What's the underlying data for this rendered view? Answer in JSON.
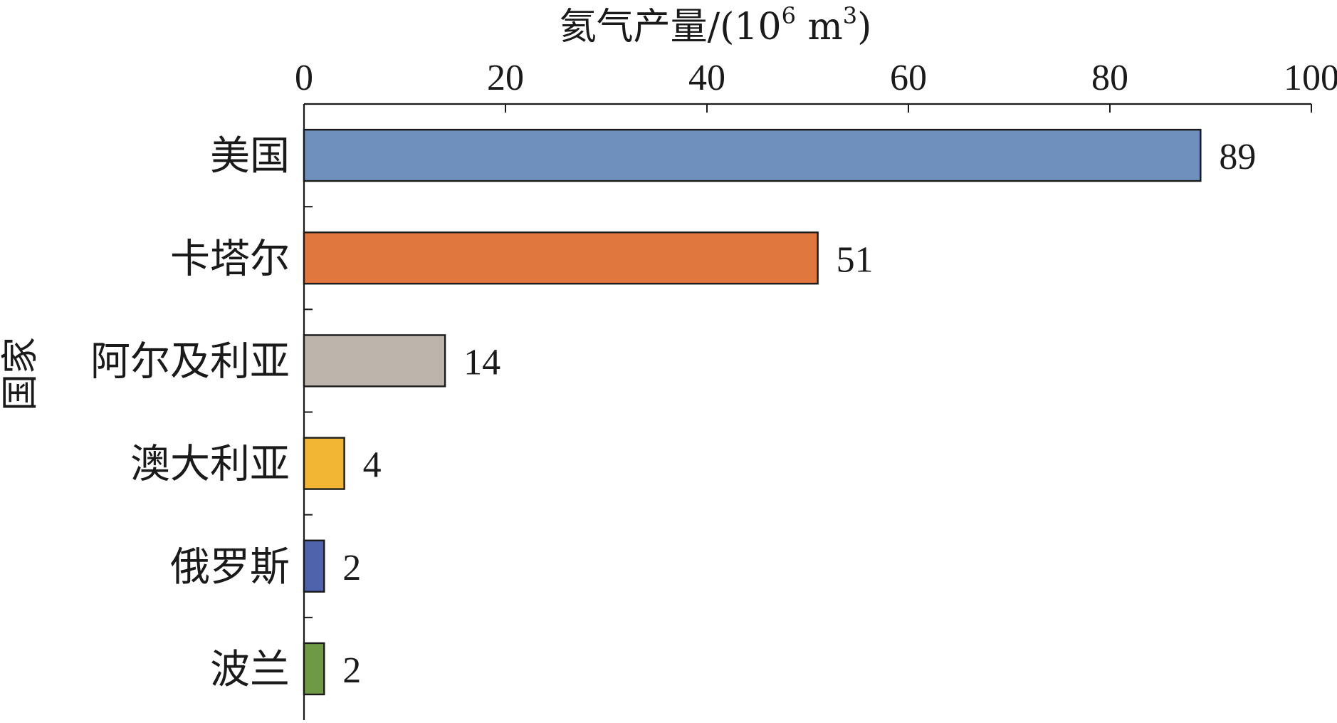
{
  "chart_data": {
    "type": "bar",
    "orientation": "horizontal",
    "title": "",
    "xlabel_main": "氦气产量/(10",
    "xlabel_sup1": "6",
    "xlabel_mid": " m",
    "xlabel_sup2": "3",
    "xlabel_end": ")",
    "ylabel": "国家",
    "xlim": [
      0,
      100
    ],
    "xticks": [
      "0",
      "20",
      "40",
      "60",
      "80",
      "100"
    ],
    "xtick_values": [
      0,
      20,
      40,
      60,
      80,
      100
    ],
    "categories": [
      "美国",
      "卡塔尔",
      "阿尔及利亚",
      "澳大利亚",
      "俄罗斯",
      "波兰"
    ],
    "values": [
      89,
      51,
      14,
      4,
      2,
      2
    ],
    "value_labels": [
      "89",
      "51",
      "14",
      "4",
      "2",
      "2"
    ],
    "colors": [
      "#6f8fbd",
      "#df773f",
      "#bdb4ac",
      "#f3b634",
      "#4f63ad",
      "#6f9a45"
    ],
    "grid": false,
    "legend": "none",
    "x_axis_position": "top"
  }
}
